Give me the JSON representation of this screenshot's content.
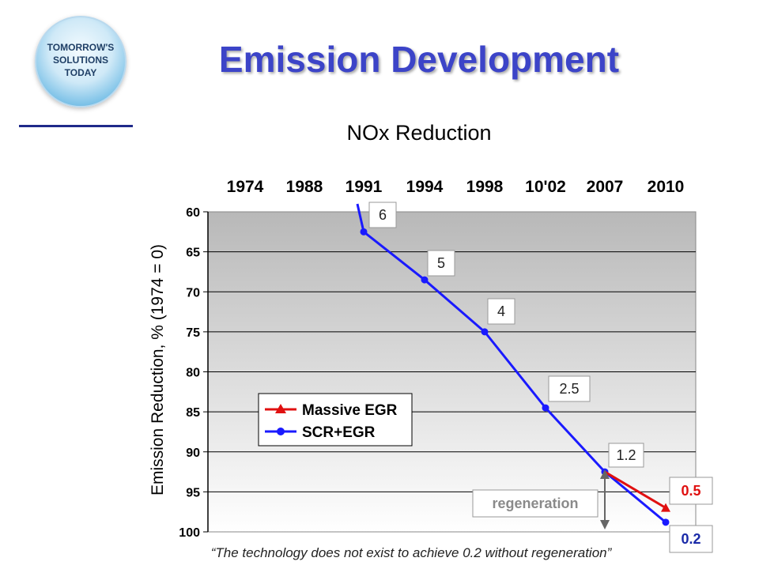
{
  "logo": {
    "text": "TOMORROW'S\nSOLUTIONS\nTODAY"
  },
  "slide": {
    "title": "Emission Development",
    "quote": "“The technology does not exist to achieve 0.2 without regeneration”"
  },
  "colors": {
    "title": "#3c44c8",
    "scr": "#1a1aff",
    "egr": "#e01010",
    "plot_bg_top": "#b8b8b8",
    "plot_bg_bottom": "#ffffff"
  },
  "chart_data": {
    "type": "line",
    "title": "NOx Reduction",
    "ylabel": "Emission Reduction, % (1974 = 0)",
    "xlabel": "",
    "categories": [
      "1974",
      "1988",
      "1991",
      "1994",
      "1998",
      "10'02",
      "2007",
      "2010"
    ],
    "ylim": [
      60,
      100
    ],
    "y_inverted": true,
    "yticks": [
      60,
      65,
      70,
      75,
      80,
      85,
      90,
      95,
      100
    ],
    "grid": true,
    "legend_position": "left",
    "series": [
      {
        "name": "SCR+EGR",
        "color": "#1a1aff",
        "marker": "circle",
        "points": [
          {
            "x": "1991",
            "y": 62.5
          },
          {
            "x": "1994",
            "y": 68.5
          },
          {
            "x": "1998",
            "y": 75
          },
          {
            "x": "10'02",
            "y": 84.5
          },
          {
            "x": "2007",
            "y": 92.5
          },
          {
            "x": "2010",
            "y": 98.8
          }
        ]
      },
      {
        "name": "Massive EGR",
        "color": "#e01010",
        "marker": "triangle",
        "points": [
          {
            "x": "2007",
            "y": 92.5
          },
          {
            "x": "2010",
            "y": 97
          }
        ]
      }
    ],
    "annotations": [
      {
        "text": "6",
        "style": "box"
      },
      {
        "text": "5",
        "style": "box"
      },
      {
        "text": "4",
        "style": "box"
      },
      {
        "text": "2.5",
        "style": "box"
      },
      {
        "text": "1.2",
        "style": "box"
      },
      {
        "text": "0.5",
        "style": "box-red"
      },
      {
        "text": "0.2",
        "style": "box-blue"
      },
      {
        "text": "regeneration",
        "style": "box-gray"
      }
    ]
  }
}
